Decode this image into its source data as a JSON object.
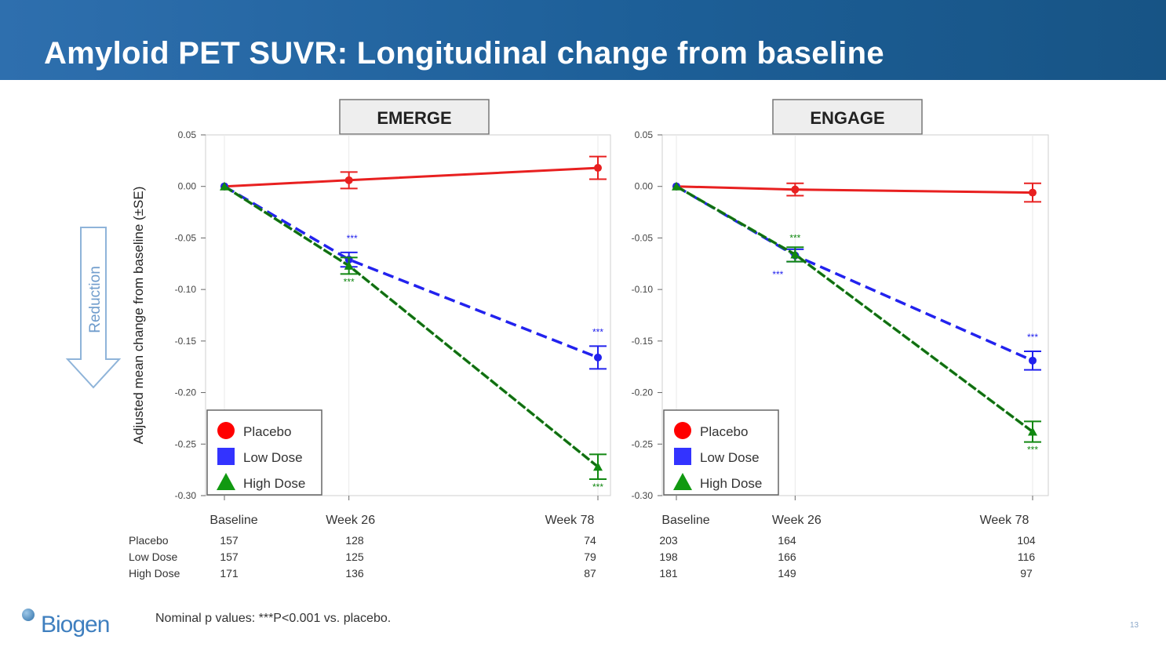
{
  "slide": {
    "title": "Amyloid PET SUVR: Longitudinal change from baseline",
    "footnote": "Nominal p values: ***P<0.001 vs. placebo.",
    "logo_text": "Biogen",
    "page_number": "13"
  },
  "axis": {
    "ylabel": "Adjusted mean change from baseline (±SE)",
    "reduction_label": "Reduction",
    "ylim": [
      -0.3,
      0.05
    ],
    "yticks": [
      0.05,
      0.0,
      -0.05,
      -0.1,
      -0.15,
      -0.2,
      -0.25,
      -0.3
    ],
    "ytick_labels": [
      "0.05",
      "0.00",
      "-0.05",
      "-0.10",
      "-0.15",
      "-0.20",
      "-0.25",
      "-0.30"
    ],
    "x_weeks": [
      0,
      26,
      78
    ],
    "xtick_labels": [
      "Baseline",
      "Week 26",
      "Week 78"
    ]
  },
  "legend": [
    {
      "name": "Placebo",
      "color": "#ff0000",
      "marker": "circle"
    },
    {
      "name": "Low Dose",
      "color": "#3333ff",
      "marker": "square"
    },
    {
      "name": "High Dose",
      "color": "#119911",
      "marker": "triangle"
    }
  ],
  "significance_label": "***",
  "colors": {
    "placebo": "#e82020",
    "low": "#2222ee",
    "high": "#118811",
    "header": "#1d5f98"
  },
  "chart_data": [
    {
      "type": "line",
      "title": "EMERGE",
      "xlabel": "",
      "ylabel": "Adjusted mean change from baseline (±SE)",
      "x": [
        0,
        26,
        78
      ],
      "series": [
        {
          "name": "Placebo",
          "values": [
            0.0,
            0.006,
            0.018
          ],
          "se": [
            0.0,
            0.008,
            0.011
          ],
          "n": [
            "157",
            "128",
            "74"
          ],
          "sig": [
            false,
            false,
            false
          ]
        },
        {
          "name": "Low Dose",
          "values": [
            0.0,
            -0.071,
            -0.166
          ],
          "se": [
            0.0,
            0.007,
            0.011
          ],
          "n": [
            "157",
            "125",
            "79"
          ],
          "sig": [
            false,
            true,
            true
          ]
        },
        {
          "name": "High Dose",
          "values": [
            0.0,
            -0.077,
            -0.272
          ],
          "se": [
            0.0,
            0.008,
            0.012
          ],
          "n": [
            "171",
            "136",
            "87"
          ],
          "sig": [
            false,
            true,
            true
          ]
        }
      ]
    },
    {
      "type": "line",
      "title": "ENGAGE",
      "xlabel": "",
      "ylabel": "",
      "x": [
        0,
        26,
        78
      ],
      "series": [
        {
          "name": "Placebo",
          "values": [
            0.0,
            -0.003,
            -0.006
          ],
          "se": [
            0.0,
            0.006,
            0.009
          ],
          "n": [
            "203",
            "164",
            "104"
          ],
          "sig": [
            false,
            false,
            false
          ]
        },
        {
          "name": "Low Dose",
          "values": [
            0.0,
            -0.067,
            -0.169
          ],
          "se": [
            0.0,
            0.006,
            0.009
          ],
          "n": [
            "198",
            "166",
            "116"
          ],
          "sig": [
            false,
            true,
            true
          ]
        },
        {
          "name": "High Dose",
          "values": [
            0.0,
            -0.066,
            -0.238
          ],
          "se": [
            0.0,
            0.007,
            0.01
          ],
          "n": [
            "181",
            "149",
            "97"
          ],
          "sig": [
            false,
            true,
            true
          ]
        }
      ]
    }
  ]
}
